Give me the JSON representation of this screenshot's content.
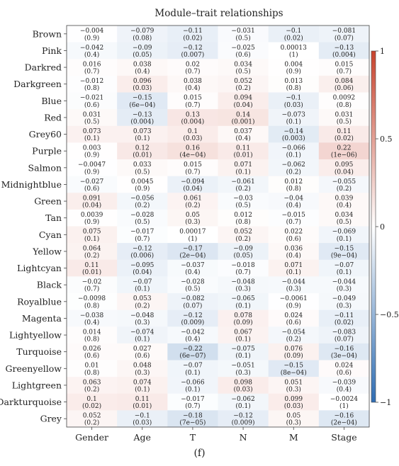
{
  "caption": "(f)",
  "chart_data": {
    "type": "heatmap",
    "title": "Module–trait relationships",
    "columns": [
      "Gender",
      "Age",
      "T",
      "N",
      "M",
      "Stage"
    ],
    "rows": [
      "Brown",
      "Pink",
      "Darkred",
      "Darkgreen",
      "Blue",
      "Red",
      "Grey60",
      "Purple",
      "Salmon",
      "Midnightblue",
      "Green",
      "Tan",
      "Cyan",
      "Yellow",
      "Lightcyan",
      "Black",
      "Royalblue",
      "Magenta",
      "Lightyellow",
      "Turquoise",
      "Greenyellow",
      "Lightgreen",
      "Darkturquoise",
      "Grey"
    ],
    "values": [
      [
        -0.004,
        -0.079,
        -0.11,
        -0.031,
        -0.1,
        -0.081
      ],
      [
        -0.042,
        -0.09,
        -0.12,
        -0.025,
        0.00013,
        -0.13
      ],
      [
        0.016,
        0.038,
        0.02,
        0.034,
        0.004,
        0.015
      ],
      [
        -0.012,
        0.096,
        0.038,
        0.052,
        0.013,
        0.084
      ],
      [
        -0.021,
        -0.15,
        0.015,
        0.094,
        -0.1,
        0.0092
      ],
      [
        0.031,
        -0.13,
        0.13,
        0.14,
        -0.073,
        0.031
      ],
      [
        0.073,
        0.073,
        0.1,
        0.037,
        -0.14,
        0.11
      ],
      [
        0.003,
        0.12,
        0.16,
        0.11,
        -0.066,
        0.22
      ],
      [
        -0.0047,
        0.033,
        0.015,
        0.071,
        -0.062,
        0.095
      ],
      [
        -0.027,
        0.0045,
        -0.094,
        -0.061,
        0.012,
        -0.055
      ],
      [
        0.091,
        -0.056,
        0.061,
        -0.03,
        -0.04,
        0.039
      ],
      [
        0.0039,
        -0.028,
        0.05,
        0.012,
        -0.015,
        0.034
      ],
      [
        0.075,
        -0.017,
        0.00017,
        0.052,
        0.022,
        -0.069
      ],
      [
        0.064,
        -0.12,
        -0.17,
        -0.09,
        0.036,
        -0.15
      ],
      [
        0.11,
        -0.095,
        -0.037,
        -0.018,
        0.071,
        -0.07
      ],
      [
        -0.02,
        -0.07,
        -0.028,
        -0.048,
        -0.044,
        -0.044
      ],
      [
        -0.0098,
        0.053,
        -0.082,
        -0.065,
        -0.0061,
        -0.049
      ],
      [
        -0.038,
        -0.048,
        -0.12,
        0.078,
        0.024,
        -0.11
      ],
      [
        0.014,
        -0.074,
        -0.042,
        0.067,
        -0.054,
        -0.083
      ],
      [
        0.026,
        0.027,
        -0.22,
        -0.075,
        0.076,
        -0.16
      ],
      [
        0.01,
        0.048,
        -0.07,
        -0.051,
        -0.15,
        0.024
      ],
      [
        0.063,
        0.074,
        -0.066,
        0.098,
        0.051,
        -0.039
      ],
      [
        0.1,
        0.11,
        -0.017,
        -0.062,
        0.099,
        -0.0024
      ],
      [
        0.052,
        -0.1,
        -0.18,
        -0.12,
        0.05,
        -0.16
      ]
    ],
    "pvalues": [
      [
        "(0.9)",
        "(0.08)",
        "(0.02)",
        "(0.5)",
        "(0.02)",
        "(0.07)"
      ],
      [
        "(0.4)",
        "(0.05)",
        "(0.007)",
        "(0.6)",
        "(1)",
        "(0.004)"
      ],
      [
        "(0.7)",
        "(0.4)",
        "(0.7)",
        "(0.5)",
        "(0.9)",
        "(0.7)"
      ],
      [
        "(0.8)",
        "(0.03)",
        "(0.4)",
        "(0.2)",
        "(0.8)",
        "(0.06)"
      ],
      [
        "(0.6)",
        "(6e−04)",
        "(0.7)",
        "(0.04)",
        "(0.03)",
        "(0.8)"
      ],
      [
        "(0.5)",
        "(0.004)",
        "(0.004)",
        "(0.001)",
        "(0.1)",
        "(0.5)"
      ],
      [
        "(0.1)",
        "(0.1)",
        "(0.03)",
        "(0.4)",
        "(0.003)",
        "(0.02)"
      ],
      [
        "(0.9)",
        "(0.01)",
        "(4e−04)",
        "(0.01)",
        "(0.1)",
        "(1e−06)"
      ],
      [
        "(0.9)",
        "(0.5)",
        "(0.7)",
        "(0.1)",
        "(0.2)",
        "(0.04)"
      ],
      [
        "(0.6)",
        "(0.9)",
        "(0.04)",
        "(0.2)",
        "(0.8)",
        "(0.2)"
      ],
      [
        "(0.04)",
        "(0.2)",
        "(0.2)",
        "(0.5)",
        "(0.4)",
        "(0.4)"
      ],
      [
        "(0.9)",
        "(0.5)",
        "(0.3)",
        "(0.8)",
        "(0.7)",
        "(0.5)"
      ],
      [
        "(0.1)",
        "(0.7)",
        "(1)",
        "(0.2)",
        "(0.6)",
        "(0.1)"
      ],
      [
        "(0.2)",
        "(0.006)",
        "(2e−04)",
        "(0.05)",
        "(0.4)",
        "(9e−04)"
      ],
      [
        "(0.01)",
        "(0.04)",
        "(0.4)",
        "(0.7)",
        "(0.1)",
        "(0.1)"
      ],
      [
        "(0.7)",
        "(0.1)",
        "(0.5)",
        "(0.3)",
        "(0.3)",
        "(0.3)"
      ],
      [
        "(0.8)",
        "(0.2)",
        "(0.07)",
        "(0.1)",
        "(0.9)",
        "(0.3)"
      ],
      [
        "(0.4)",
        "(0.3)",
        "(0.009)",
        "(0.09)",
        "(0.6)",
        "(0.02)"
      ],
      [
        "(0.8)",
        "(0.1)",
        "(0.4)",
        "(0.1)",
        "(0.2)",
        "(0.07)"
      ],
      [
        "(0.6)",
        "(0.6)",
        "(6e−07)",
        "(0.1)",
        "(0.09)",
        "(3e−04)"
      ],
      [
        "(0.8)",
        "(0.3)",
        "(0.1)",
        "(0.3)",
        "(8e−04)",
        "(0.6)"
      ],
      [
        "(0.2)",
        "(0.1)",
        "(0.1)",
        "(0.03)",
        "(0.3)",
        "(0.4)"
      ],
      [
        "(0.02)",
        "(0.01)",
        "(0.7)",
        "(0.1)",
        "(0.03)",
        "(1)"
      ],
      [
        "(0.2)",
        "(0.03)",
        "(7e−05)",
        "(0.009)",
        "(0.3)",
        "(2e−04)"
      ]
    ],
    "value_labels": [
      [
        "−0.004",
        "−0.079",
        "−0.11",
        "−0.031",
        "−0.1",
        "−0.081"
      ],
      [
        "−0.042",
        "−0.09",
        "−0.12",
        "−0.025",
        "0.00013",
        "−0.13"
      ],
      [
        "0.016",
        "0.038",
        "0.02",
        "0.034",
        "0.004",
        "0.015"
      ],
      [
        "−0.012",
        "0.096",
        "0.038",
        "0.052",
        "0.013",
        "0.084"
      ],
      [
        "−0.021",
        "−0.15",
        "0.015",
        "0.094",
        "−0.1",
        "0.0092"
      ],
      [
        "0.031",
        "−0.13",
        "0.13",
        "0.14",
        "−0.073",
        "0.031"
      ],
      [
        "0.073",
        "0.073",
        "0.1",
        "0.037",
        "−0.14",
        "0.11"
      ],
      [
        "0.003",
        "0.12",
        "0.16",
        "0.11",
        "−0.066",
        "0.22"
      ],
      [
        "−0.0047",
        "0.033",
        "0.015",
        "0.071",
        "−0.062",
        "0.095"
      ],
      [
        "−0.027",
        "0.0045",
        "−0.094",
        "−0.061",
        "0.012",
        "−0.055"
      ],
      [
        "0.091",
        "−0.056",
        "0.061",
        "−0.03",
        "−0.04",
        "0.039"
      ],
      [
        "0.0039",
        "−0.028",
        "0.05",
        "0.012",
        "−0.015",
        "0.034"
      ],
      [
        "0.075",
        "−0.017",
        "0.00017",
        "0.052",
        "0.022",
        "−0.069"
      ],
      [
        "0.064",
        "−0.12",
        "−0.17",
        "−0.09",
        "0.036",
        "−0.15"
      ],
      [
        "0.11",
        "−0.095",
        "−0.037",
        "−0.018",
        "0.071",
        "−0.07"
      ],
      [
        "−0.02",
        "−0.07",
        "−0.028",
        "−0.048",
        "−0.044",
        "−0.044"
      ],
      [
        "−0.0098",
        "0.053",
        "−0.082",
        "−0.065",
        "−0.0061",
        "−0.049"
      ],
      [
        "−0.038",
        "−0.048",
        "−0.12",
        "0.078",
        "0.024",
        "−0.11"
      ],
      [
        "0.014",
        "−0.074",
        "−0.042",
        "0.067",
        "−0.054",
        "−0.083"
      ],
      [
        "0.026",
        "0.027",
        "−0.22",
        "−0.075",
        "0.076",
        "−0.16"
      ],
      [
        "0.01",
        "0.048",
        "−0.07",
        "−0.051",
        "−0.15",
        "0.024"
      ],
      [
        "0.063",
        "0.074",
        "−0.066",
        "0.098",
        "0.051",
        "−0.039"
      ],
      [
        "0.1",
        "0.11",
        "−0.017",
        "−0.062",
        "0.099",
        "−0.0024"
      ],
      [
        "0.052",
        "−0.1",
        "−0.18",
        "−0.12",
        "0.05",
        "−0.16"
      ]
    ],
    "colorbar": {
      "range": [
        -1,
        1
      ],
      "ticks": [
        1,
        0.5,
        0,
        -0.5,
        -1
      ],
      "tick_labels": [
        "1",
        "0.5",
        "0",
        "−0.5",
        "−1"
      ],
      "colors": {
        "low": "#2f6db3",
        "mid": "#ffffff",
        "high": "#c8422c"
      }
    }
  }
}
